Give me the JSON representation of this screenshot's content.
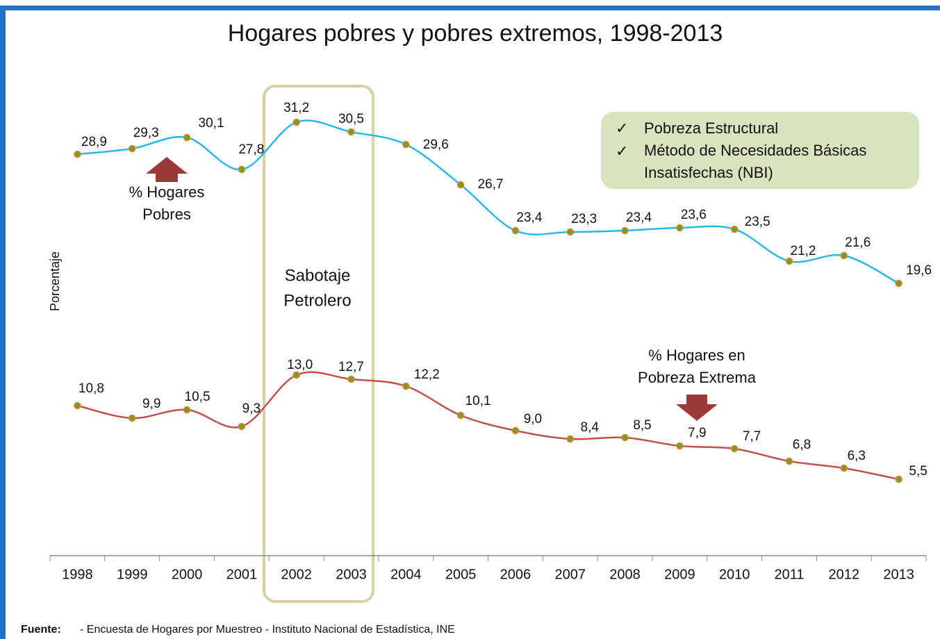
{
  "chart_data": {
    "type": "line",
    "title": "Hogares pobres y pobres extremos, 1998-2013",
    "ylabel": "Porcentaje",
    "categories": [
      "1998",
      "1999",
      "2000",
      "2001",
      "2002",
      "2003",
      "2004",
      "2005",
      "2006",
      "2007",
      "2008",
      "2009",
      "2010",
      "2011",
      "2012",
      "2013"
    ],
    "ylim": [
      0,
      32
    ],
    "series": [
      {
        "color": "#29b6e8",
        "values": [
          28.9,
          29.3,
          30.1,
          27.8,
          31.2,
          30.5,
          29.6,
          26.7,
          23.4,
          23.3,
          23.4,
          23.6,
          23.5,
          21.2,
          21.6,
          19.6
        ],
        "value_labels": [
          "28,9",
          "29,3",
          "30,1",
          "27,8",
          "31,2",
          "30,5",
          "29,6",
          "26,7",
          "23,4",
          "23,3",
          "23,4",
          "23,6",
          "23,5",
          "21,2",
          "21,6",
          "19,6"
        ],
        "annotation": [
          "% Hogares",
          "Pobres"
        ]
      },
      {
        "color": "#c0504d",
        "values": [
          10.8,
          9.9,
          10.5,
          9.3,
          13.0,
          12.7,
          12.2,
          10.1,
          9.0,
          8.4,
          8.5,
          7.9,
          7.7,
          6.8,
          6.3,
          5.5
        ],
        "value_labels": [
          "10,8",
          "9,9",
          "10,5",
          "9,3",
          "13,0",
          "12,7",
          "12,2",
          "10,1",
          "9,0",
          "8,4",
          "8,5",
          "7,9",
          "7,7",
          "6,8",
          "6,3",
          "5,5"
        ],
        "annotation": [
          "% Hogares en",
          "Pobreza Extrema"
        ]
      }
    ],
    "highlight": [
      "Sabotaje",
      "Petrolero"
    ],
    "notes": [
      "Pobreza Estructural",
      "Método de Necesidades Básicas",
      "Insatisfechas (NBI)"
    ],
    "source_label": "Fuente:",
    "source": "- Encuesta de Hogares por Muestreo  - Instituto Nacional de Estadística, INE"
  }
}
